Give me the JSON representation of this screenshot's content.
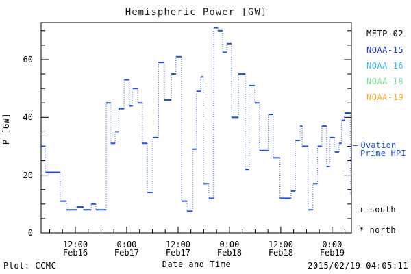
{
  "chart_data": {
    "type": "line",
    "subtype": "step",
    "title": "Hemispheric Power [GW]",
    "xlabel": "Date and Time",
    "ylabel": "P [GW]",
    "ylim": [
      0,
      72.8
    ],
    "yticks_major": [
      0,
      20,
      40,
      60
    ],
    "ytick_minor_step_gw": 5,
    "x_units": "hours since 2015-02-16 00:00 UT",
    "x_start_hours": 4.0,
    "x_end_hours": 76.5,
    "xtick_major_step_h": 12,
    "xtick_minor_step_h": 3,
    "grid": "off",
    "legend_position": "right outside",
    "xticks": [
      {
        "h": 12,
        "time": "12:00",
        "date": "Feb16"
      },
      {
        "h": 24,
        "time": "0:00",
        "date": "Feb17"
      },
      {
        "h": 36,
        "time": "12:00",
        "date": "Feb17"
      },
      {
        "h": 48,
        "time": "0:00",
        "date": "Feb18"
      },
      {
        "h": 60,
        "time": "12:00",
        "date": "Feb18"
      },
      {
        "h": 72,
        "time": "0:00",
        "date": "Feb19"
      }
    ],
    "series": [
      {
        "name": "Ovation Prime HPI",
        "color": "#1f4fdd",
        "line_style": "solid horizontal steps with dotted vertical connectors",
        "end_hours": 76.35,
        "steps_hours_gw": [
          [
            4.0,
            30
          ],
          [
            5.0,
            21
          ],
          [
            8.5,
            11
          ],
          [
            9.9,
            8
          ],
          [
            12.3,
            9
          ],
          [
            13.9,
            8
          ],
          [
            15.7,
            10
          ],
          [
            16.8,
            8
          ],
          [
            19.2,
            45
          ],
          [
            20.3,
            31
          ],
          [
            21.3,
            35
          ],
          [
            22.1,
            43
          ],
          [
            23.4,
            53
          ],
          [
            24.6,
            44
          ],
          [
            25.4,
            50
          ],
          [
            26.6,
            45
          ],
          [
            27.7,
            31
          ],
          [
            28.8,
            14
          ],
          [
            30.1,
            33
          ],
          [
            31.4,
            59
          ],
          [
            32.8,
            46
          ],
          [
            34.4,
            55
          ],
          [
            35.5,
            61
          ],
          [
            36.8,
            11
          ],
          [
            38.1,
            7.5
          ],
          [
            39.4,
            29
          ],
          [
            40.3,
            49
          ],
          [
            41.3,
            54
          ],
          [
            41.9,
            17
          ],
          [
            43.2,
            12
          ],
          [
            44.3,
            71
          ],
          [
            45.3,
            70
          ],
          [
            46.4,
            62.5
          ],
          [
            47.4,
            65.5
          ],
          [
            48.5,
            40
          ],
          [
            50.1,
            55
          ],
          [
            51.7,
            22
          ],
          [
            52.6,
            51
          ],
          [
            53.9,
            45
          ],
          [
            55.0,
            28.5
          ],
          [
            57.1,
            41
          ],
          [
            58.2,
            26
          ],
          [
            59.8,
            12
          ],
          [
            62.4,
            14.5
          ],
          [
            63.4,
            32
          ],
          [
            64.5,
            37
          ],
          [
            65.0,
            30
          ],
          [
            66.4,
            8
          ],
          [
            67.5,
            17
          ],
          [
            68.6,
            30
          ],
          [
            69.6,
            37
          ],
          [
            70.7,
            23
          ],
          [
            71.5,
            33
          ],
          [
            72.6,
            28
          ],
          [
            73.6,
            31
          ],
          [
            74.2,
            39
          ],
          [
            75.0,
            41.5
          ],
          [
            76.3,
            13.5
          ]
        ]
      }
    ]
  },
  "legend": {
    "satellites": [
      {
        "name": "METP-02",
        "color": "#000000"
      },
      {
        "name": "NOAA-15",
        "color": "#1f35e0"
      },
      {
        "name": "NOAA-16",
        "color": "#36bdf0"
      },
      {
        "name": "NOAA-18",
        "color": "#72e292"
      },
      {
        "name": "NOAA-19",
        "color": "#ffa62e"
      }
    ],
    "ovation": {
      "dash": "—",
      "line1": "Ovation",
      "line2": "Prime HPI",
      "color": "#1f4fdd"
    },
    "markers": {
      "south_symbol": "+",
      "south_label": "south",
      "north_symbol": "*",
      "north_label": "north"
    }
  },
  "footer": {
    "left": "Plot: CCMC",
    "right": "2015/02/19 04:05:11"
  }
}
